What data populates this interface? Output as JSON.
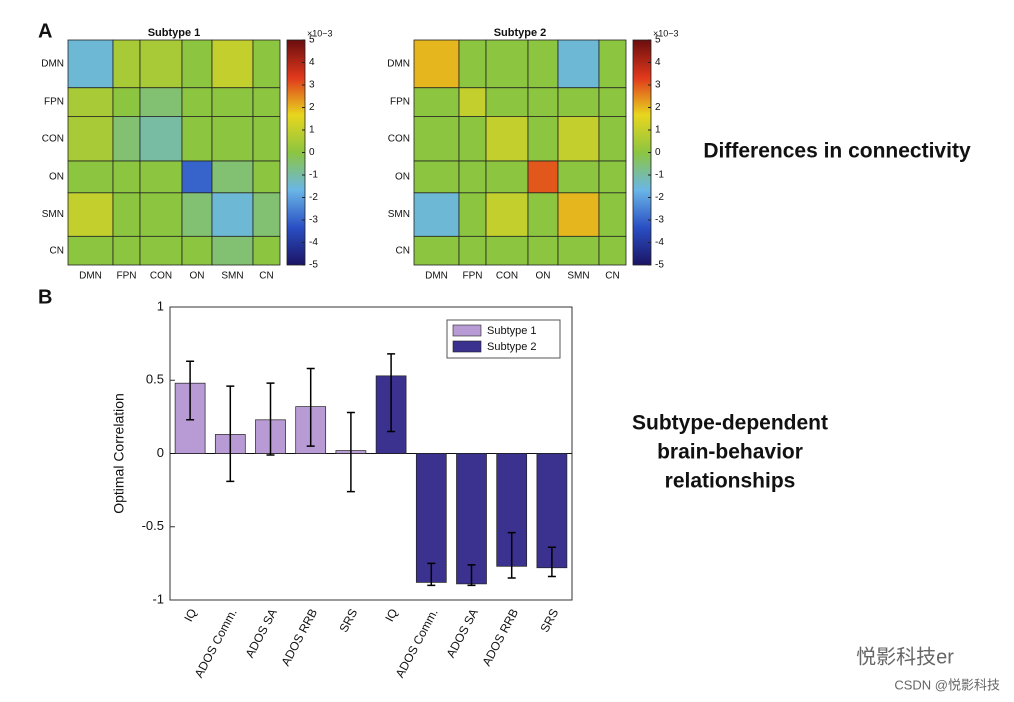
{
  "chart_data": [
    {
      "type": "heatmap",
      "title": "Subtype 1",
      "zlabel": "×10−3",
      "categories": [
        "DMN",
        "FPN",
        "CON",
        "ON",
        "SMN",
        "CN"
      ],
      "values": [
        [
          -1.5,
          0.5,
          0.5,
          0,
          1,
          0
        ],
        [
          0.5,
          0,
          -0.5,
          0,
          0,
          0
        ],
        [
          0.5,
          -0.5,
          -1,
          0,
          0,
          0
        ],
        [
          0,
          0,
          0,
          -3,
          -0.5,
          0
        ],
        [
          1,
          0,
          0,
          -0.5,
          -1.5,
          -0.5
        ],
        [
          0,
          0,
          0,
          0,
          -0.5,
          0
        ]
      ],
      "zlim": [
        -5,
        5
      ],
      "zticks": [
        -5,
        -4,
        -3,
        -2,
        -1,
        0,
        1,
        2,
        3,
        4,
        5
      ],
      "colormap": [
        "#1b1464",
        "#2a4fc4",
        "#6ab6e6",
        "#8cc540",
        "#e8d61e",
        "#e0381c",
        "#6a0e0e"
      ]
    },
    {
      "type": "heatmap",
      "title": "Subtype 2",
      "zlabel": "×10−3",
      "categories": [
        "DMN",
        "FPN",
        "CON",
        "ON",
        "SMN",
        "CN"
      ],
      "values": [
        [
          2,
          0,
          0,
          0,
          -1.5,
          0
        ],
        [
          0,
          1,
          0,
          0,
          0,
          0
        ],
        [
          0,
          0,
          1,
          0,
          1,
          0
        ],
        [
          0,
          0,
          0,
          3,
          0,
          0
        ],
        [
          -1.5,
          0,
          1,
          0,
          2,
          0
        ],
        [
          0,
          0,
          0,
          0,
          0,
          0
        ]
      ],
      "zlim": [
        -5,
        5
      ],
      "zticks": [
        -5,
        -4,
        -3,
        -2,
        -1,
        0,
        1,
        2,
        3,
        4,
        5
      ],
      "colormap": [
        "#1b1464",
        "#2a4fc4",
        "#6ab6e6",
        "#8cc540",
        "#e8d61e",
        "#e0381c",
        "#6a0e0e"
      ]
    },
    {
      "type": "bar",
      "y_label": "Optimal Correlation",
      "categories": [
        "IQ",
        "ADOS Comm.",
        "ADOS SA",
        "ADOS RRB",
        "SRS",
        "IQ",
        "ADOS Comm.",
        "ADOS SA",
        "ADOS RRB",
        "SRS"
      ],
      "series": [
        {
          "name": "Subtype 1",
          "color": "#b89ad4",
          "values": [
            0.48,
            0.13,
            0.23,
            0.32,
            0.02,
            null,
            null,
            null,
            null,
            null
          ],
          "errors_minus": [
            0.25,
            0.32,
            0.24,
            0.27,
            0.28,
            null,
            null,
            null,
            null,
            null
          ],
          "errors_plus": [
            0.15,
            0.33,
            0.25,
            0.26,
            0.26,
            null,
            null,
            null,
            null,
            null
          ]
        },
        {
          "name": "Subtype 2",
          "color": "#3b318f",
          "values": [
            null,
            null,
            null,
            null,
            null,
            0.53,
            -0.88,
            -0.89,
            -0.77,
            -0.78
          ],
          "errors_minus": [
            null,
            null,
            null,
            null,
            null,
            0.38,
            0.02,
            0.01,
            0.08,
            0.06
          ],
          "errors_plus": [
            null,
            null,
            null,
            null,
            null,
            0.15,
            0.13,
            0.13,
            0.23,
            0.14
          ]
        }
      ],
      "ylim": [
        -1,
        1
      ],
      "yticks": [
        -1,
        -0.5,
        0,
        0.5,
        1
      ],
      "legend": "upper right"
    }
  ],
  "panel_labels": [
    "A",
    "B"
  ],
  "annotations": {
    "connectivity": "Differences in connectivity",
    "relationships": [
      "Subtype-dependent",
      "brain-behavior",
      "relationships"
    ]
  },
  "watermark": {
    "main": "悦影科技er",
    "source": "CSDN @悦影科技"
  }
}
